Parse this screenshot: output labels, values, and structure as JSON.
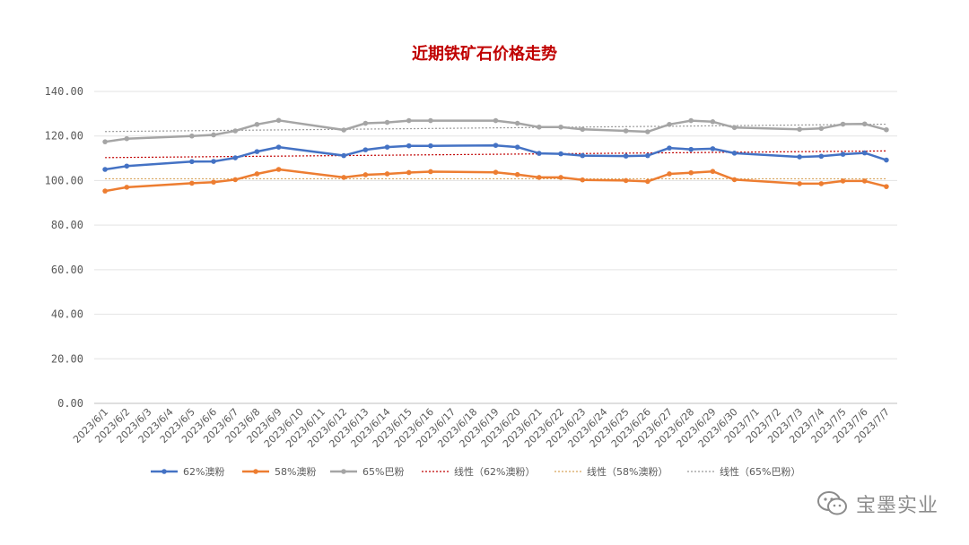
{
  "chart_data": {
    "type": "line",
    "title": "近期铁矿石价格走势",
    "categories": [
      "2023/6/1",
      "2023/6/2",
      "2023/6/3",
      "2023/6/4",
      "2023/6/5",
      "2023/6/6",
      "2023/6/7",
      "2023/6/8",
      "2023/6/9",
      "2023/6/10",
      "2023/6/11",
      "2023/6/12",
      "2023/6/13",
      "2023/6/14",
      "2023/6/15",
      "2023/6/16",
      "2023/6/17",
      "2023/6/18",
      "2023/6/19",
      "2023/6/20",
      "2023/6/21",
      "2023/6/22",
      "2023/6/23",
      "2023/6/24",
      "2023/6/25",
      "2023/6/26",
      "2023/6/27",
      "2023/6/28",
      "2023/6/29",
      "2023/6/30",
      "2023/7/1",
      "2023/7/2",
      "2023/7/3",
      "2023/7/4",
      "2023/7/5",
      "2023/7/6",
      "2023/7/7"
    ],
    "ylim": [
      0,
      140
    ],
    "yticks": [
      "0.00",
      "20.00",
      "40.00",
      "60.00",
      "80.00",
      "100.00",
      "120.00",
      "140.00"
    ],
    "grid": true,
    "legend_position": "bottom",
    "series": [
      {
        "name": "62%澳粉",
        "color": "#4472c4",
        "values": [
          105,
          106.5,
          null,
          null,
          108.5,
          108.6,
          110.2,
          113,
          115,
          null,
          null,
          111.2,
          113.8,
          115,
          115.6,
          115.6,
          null,
          null,
          115.8,
          115,
          112.2,
          112,
          111.2,
          null,
          111,
          111.2,
          114.6,
          114,
          114.3,
          112.3,
          null,
          null,
          110.6,
          110.9,
          111.8,
          112.4,
          109.2
        ]
      },
      {
        "name": "58%澳粉",
        "color": "#ed7d31",
        "values": [
          95.3,
          97,
          null,
          null,
          98.8,
          99.3,
          100.4,
          103,
          105,
          null,
          null,
          101.4,
          102.6,
          103,
          103.6,
          104,
          null,
          null,
          103.7,
          102.7,
          101.4,
          101.4,
          100.3,
          null,
          100,
          99.6,
          103,
          103.5,
          104.1,
          100.4,
          null,
          null,
          98.6,
          98.6,
          99.8,
          99.8,
          97.3
        ]
      },
      {
        "name": "65%巴粉",
        "color": "#a5a5a5",
        "values": [
          117.4,
          118.8,
          null,
          null,
          120,
          120.5,
          122.3,
          125.2,
          127,
          null,
          null,
          122.7,
          125.7,
          126.1,
          126.9,
          126.9,
          null,
          null,
          126.9,
          125.7,
          124,
          124,
          123,
          null,
          122.3,
          121.9,
          125.2,
          126.9,
          126.4,
          123.8,
          null,
          null,
          123,
          123.4,
          125.3,
          125.4,
          122.8
        ]
      }
    ],
    "trendlines": [
      {
        "name": "线性（62%澳粉）",
        "of": "62%澳粉",
        "color": "#c00000",
        "start": 110.3,
        "end": 113.3
      },
      {
        "name": "线性（58%澳粉）",
        "of": "58%澳粉",
        "color": "#d8a35a",
        "start": 100.8,
        "end": 100.8
      },
      {
        "name": "线性（65%巴粉）",
        "of": "65%巴粉",
        "color": "#999999",
        "start": 122.0,
        "end": 125.3
      }
    ]
  },
  "watermark": {
    "icon": "wechat-icon",
    "text": "宝墨实业"
  }
}
